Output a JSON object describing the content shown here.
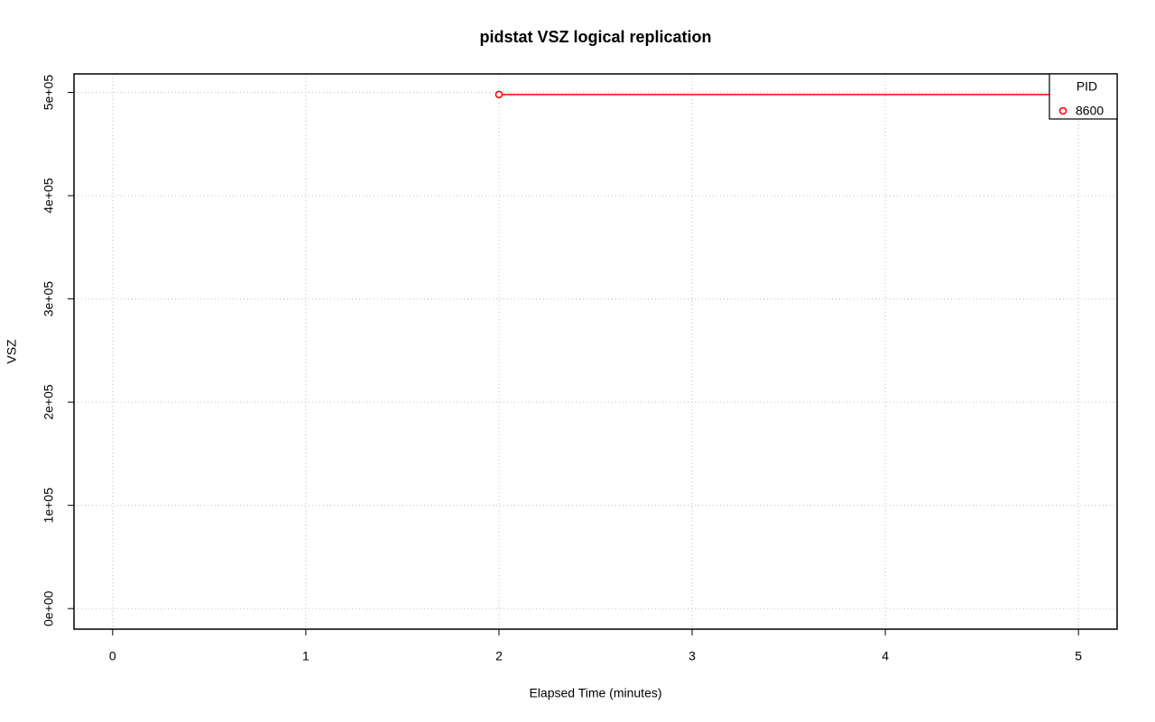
{
  "chart_data": {
    "type": "line",
    "title": "pidstat VSZ logical replication",
    "x_label": "Elapsed Time (minutes)",
    "y_label": "VSZ",
    "x": [
      2,
      5
    ],
    "series": [
      {
        "name": "8600",
        "color": "#ff0000",
        "values": [
          498000,
          498000
        ]
      }
    ],
    "legend_title": "PID",
    "legend_position": "top-right",
    "xlim": [
      -0.2,
      5.2
    ],
    "xticks": [
      0,
      1,
      2,
      3,
      4,
      5
    ],
    "ylim": [
      -19920,
      517920
    ],
    "yticks": [
      {
        "value": 0,
        "label": "0e+00"
      },
      {
        "value": 100000,
        "label": "1e+05"
      },
      {
        "value": 200000,
        "label": "2e+05"
      },
      {
        "value": 300000,
        "label": "3e+05"
      },
      {
        "value": 400000,
        "label": "4e+05"
      },
      {
        "value": 500000,
        "label": "5e+05"
      }
    ],
    "grid": true
  }
}
